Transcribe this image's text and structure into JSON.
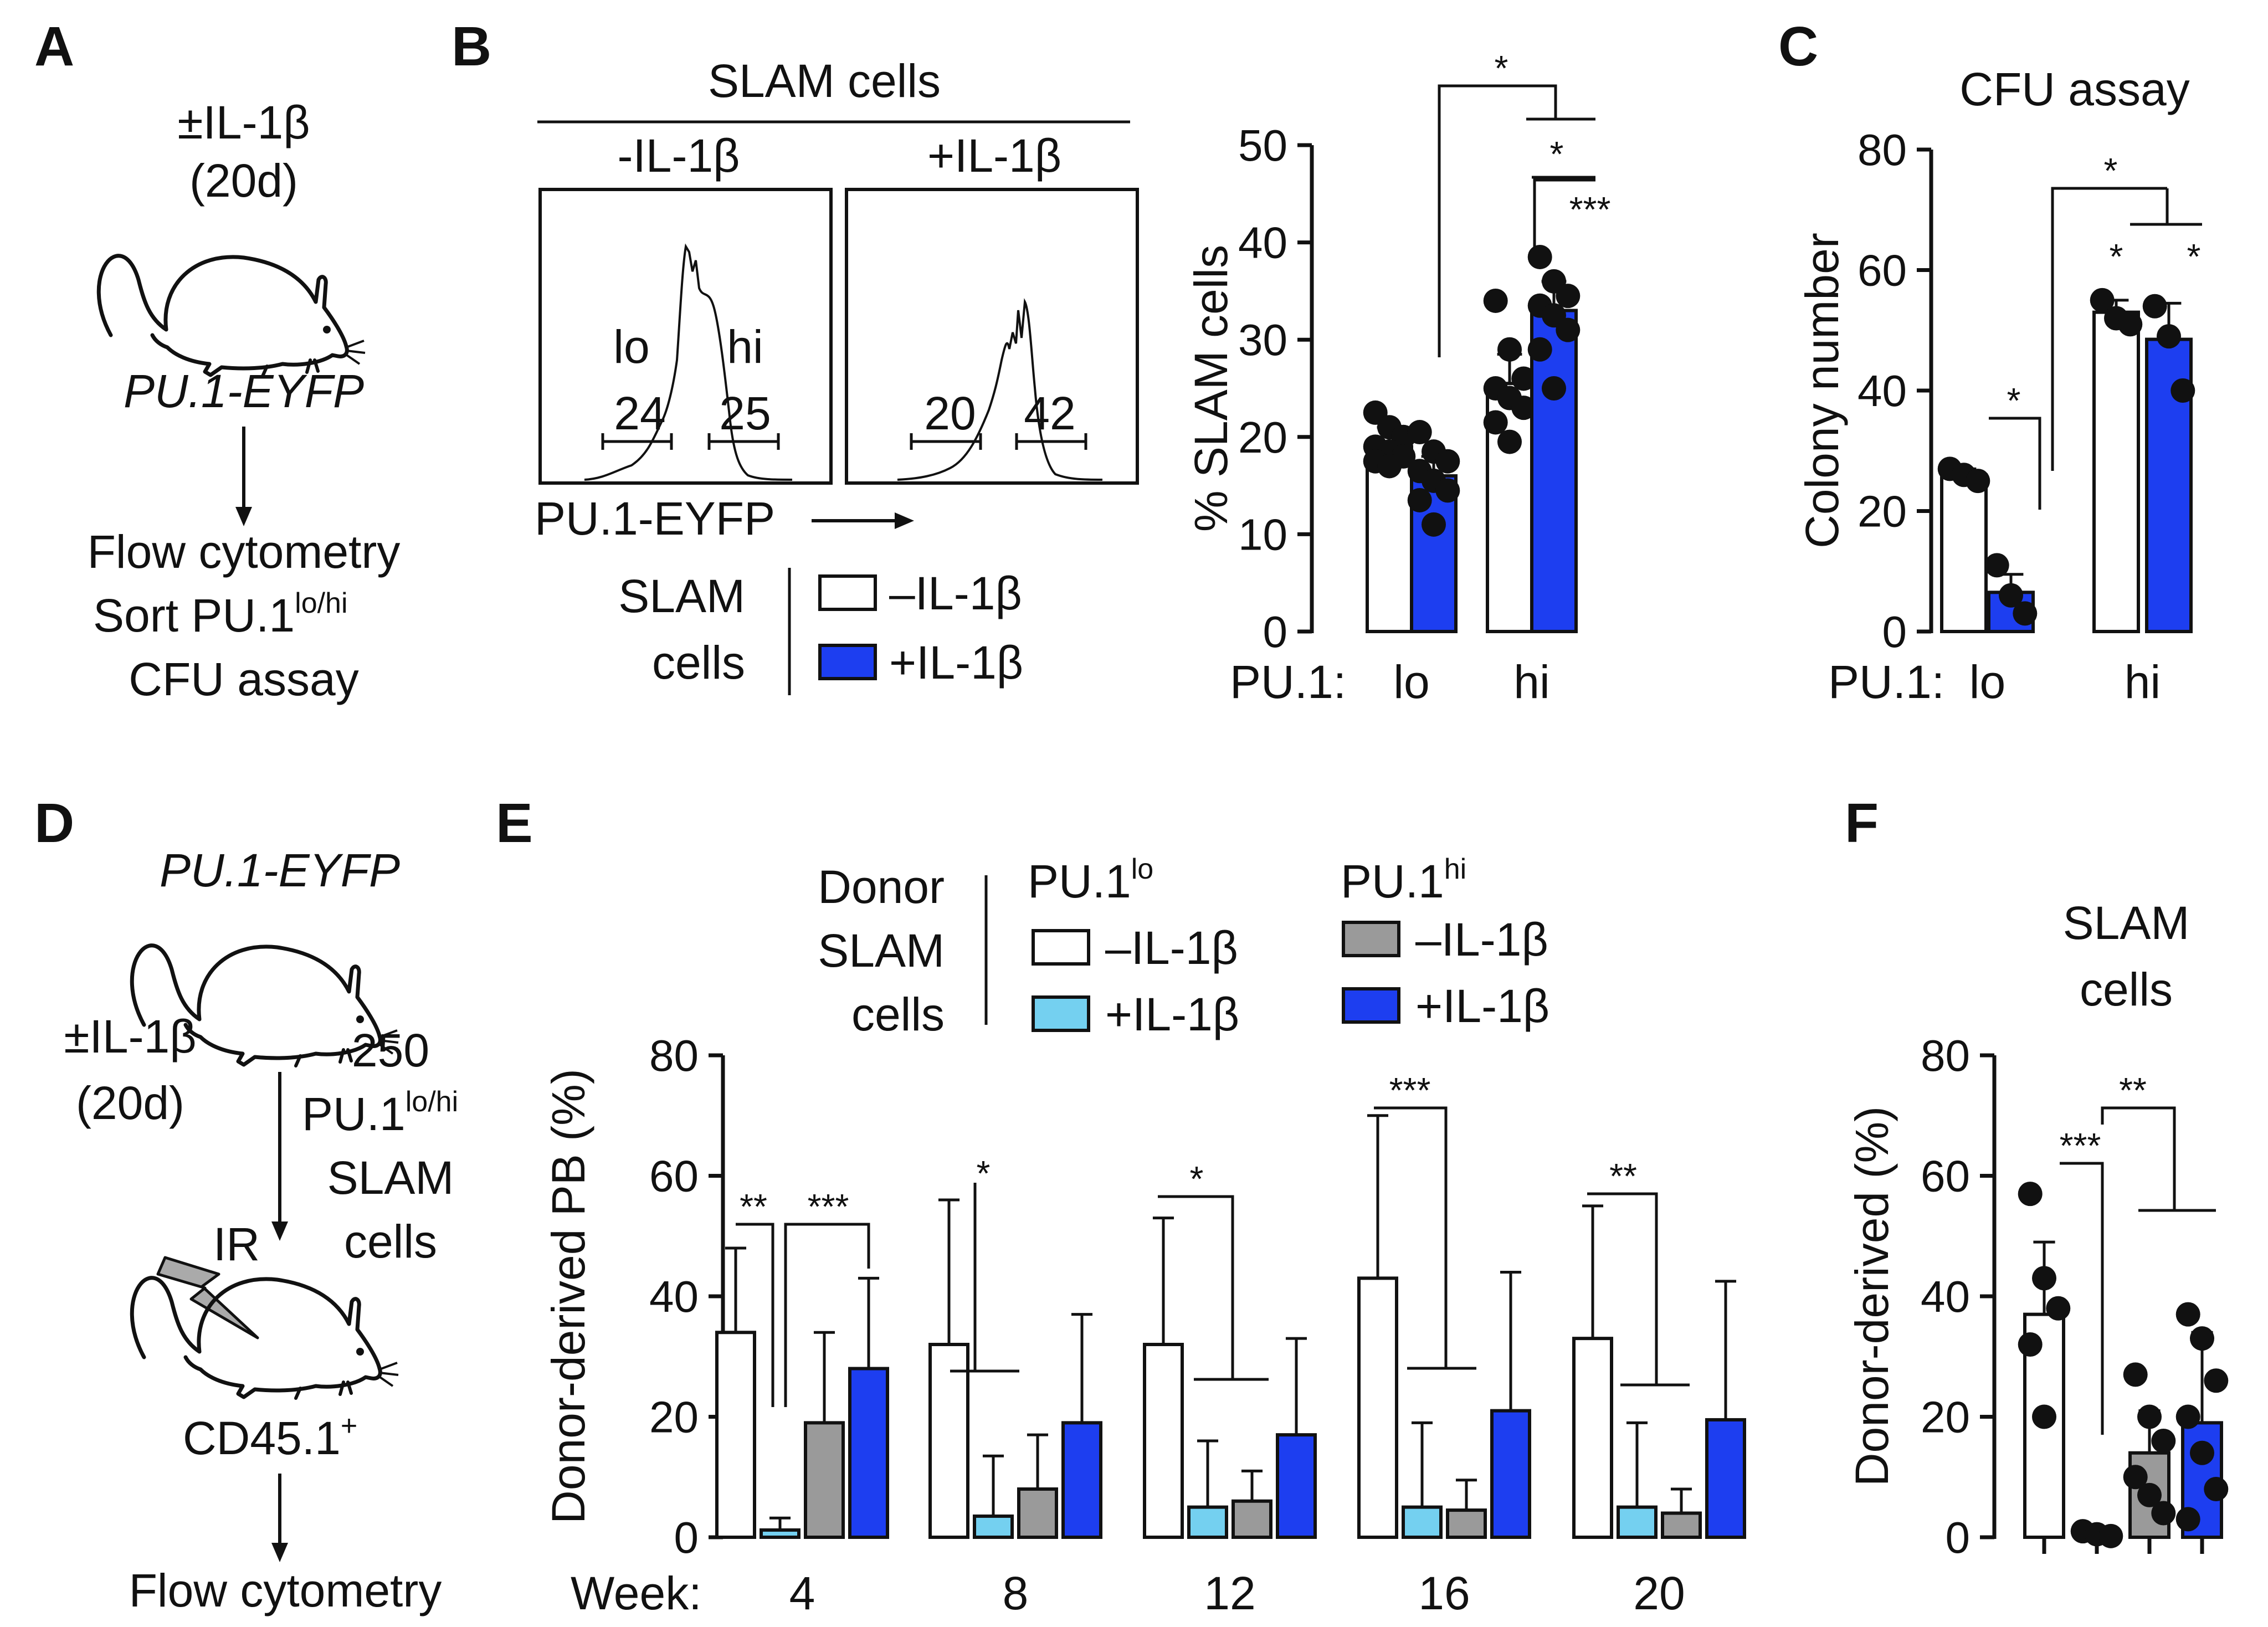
{
  "colors": {
    "white": "#ffffff",
    "light_blue": "#74d0f0",
    "gray": "#9a9a9a",
    "blue": "#1d3ef0",
    "ink": "#111111"
  },
  "panel_labels": {
    "a": "A",
    "b": "B",
    "c": "C",
    "d": "D",
    "e": "E",
    "f": "F"
  },
  "panel_a": {
    "treatment": "±IL-1β",
    "duration": "(20d)",
    "strain": "PU.1-EYFP",
    "step1": "Flow cytometry",
    "step2_main": "Sort PU.1",
    "step2_sup": "lo/hi",
    "step3": "CFU assay"
  },
  "panel_b_flow": {
    "title": "SLAM cells",
    "left_label": "-IL-1β",
    "right_label": "+IL-1β",
    "lo_label": "lo",
    "hi_label": "hi",
    "left_lo_pct": "24",
    "left_hi_pct": "25",
    "right_lo_pct": "20",
    "right_hi_pct": "42",
    "x_axis": "PU.1-EYFP",
    "legend_title_1": "SLAM",
    "legend_title_2": "cells",
    "legend_minus": "–IL-1β",
    "legend_plus": "+IL-1β"
  },
  "panel_d": {
    "strain": "PU.1-EYFP",
    "treatment": "±IL-1β",
    "duration": "(20d)",
    "count": "250",
    "cells_main": "PU.1",
    "cells_sup": "lo/hi",
    "cells_line3": "SLAM",
    "cells_line4": "cells",
    "ir": "IR",
    "recipient_main": "CD45.1",
    "recipient_sup": "+",
    "readout": "Flow cytometry"
  },
  "panel_e_legend": {
    "title_1": "Donor",
    "title_2": "SLAM",
    "title_3": "cells",
    "lo_header_main": "PU.1",
    "lo_header_sup": "lo",
    "hi_header_main": "PU.1",
    "hi_header_sup": "hi",
    "minus": "–IL-1β",
    "plus": "+IL-1β"
  },
  "chart_data": [
    {
      "id": "B",
      "type": "bar",
      "title": "",
      "ylabel": "% SLAM cells",
      "xlabel_prefix": "PU.1:",
      "ylim": [
        0,
        50
      ],
      "yticks": [
        0,
        10,
        20,
        30,
        40,
        50
      ],
      "categories": [
        "lo",
        "hi"
      ],
      "series": [
        {
          "name": "–IL-1β",
          "color": "#ffffff",
          "values": [
            19,
            25.5
          ],
          "errors": [
            2,
            3
          ],
          "points": [
            [
              22.5,
              21,
              20,
              19,
              18.5,
              18,
              17.5,
              17
            ],
            [
              34,
              29,
              26,
              25,
              24,
              23,
              21.5,
              19.5
            ]
          ]
        },
        {
          "name": "+IL-1β",
          "color": "#1d3ef0",
          "values": [
            16,
            33
          ],
          "errors": [
            2,
            3
          ],
          "points": [
            [
              20.5,
              18.5,
              17.5,
              16.5,
              15.5,
              14.5,
              13.5,
              11
            ],
            [
              38.5,
              36,
              34.5,
              33.5,
              32.5,
              31,
              29,
              25
            ]
          ]
        }
      ],
      "significance": [
        "*",
        "*",
        "***"
      ]
    },
    {
      "id": "C",
      "type": "bar",
      "title": "CFU assay",
      "ylabel": "Colony number",
      "xlabel_prefix": "PU.1:",
      "ylim": [
        0,
        80
      ],
      "yticks": [
        0,
        20,
        40,
        60,
        80
      ],
      "categories": [
        "lo",
        "hi"
      ],
      "series": [
        {
          "name": "–IL-1β",
          "color": "#ffffff",
          "values": [
            26,
            53
          ],
          "errors": [
            1,
            2
          ],
          "points": [
            [
              27,
              26,
              25
            ],
            [
              55,
              52,
              51
            ]
          ]
        },
        {
          "name": "+IL-1β",
          "color": "#1d3ef0",
          "values": [
            6.5,
            48.5
          ],
          "errors": [
            3,
            6
          ],
          "points": [
            [
              11,
              6,
              3
            ],
            [
              54,
              49,
              40
            ]
          ]
        }
      ],
      "significance": [
        "*",
        "*",
        "*",
        "*"
      ]
    },
    {
      "id": "E",
      "type": "bar",
      "title": "",
      "ylabel": "Donor-derived PB (%)",
      "xlabel_prefix": "Week:",
      "ylim": [
        0,
        80
      ],
      "yticks": [
        0,
        20,
        40,
        60,
        80
      ],
      "categories": [
        "4",
        "8",
        "12",
        "16",
        "20"
      ],
      "series": [
        {
          "name": "PU.1lo –IL-1β",
          "color": "#ffffff",
          "values": [
            34,
            32,
            32,
            43,
            33
          ],
          "errors": [
            14,
            24,
            21,
            27,
            22
          ]
        },
        {
          "name": "PU.1lo +IL-1β",
          "color": "#74d0f0",
          "values": [
            1.2,
            3.5,
            5,
            5,
            5
          ],
          "errors": [
            2,
            10,
            11,
            14,
            14
          ]
        },
        {
          "name": "PU.1hi –IL-1β",
          "color": "#9a9a9a",
          "values": [
            19,
            8,
            6,
            4.5,
            4
          ],
          "errors": [
            15,
            9,
            5,
            5,
            4
          ]
        },
        {
          "name": "PU.1hi +IL-1β",
          "color": "#1d3ef0",
          "values": [
            28,
            19,
            17,
            21,
            19.5
          ],
          "errors": [
            15,
            18,
            16,
            23,
            23
          ]
        }
      ],
      "significance": [
        "**",
        "***",
        "*",
        "*",
        "***",
        "**"
      ]
    },
    {
      "id": "F",
      "type": "bar",
      "title": "SLAM cells",
      "ylabel": "Donor-derived (%)",
      "ylim": [
        0,
        80
      ],
      "yticks": [
        0,
        20,
        40,
        60,
        80
      ],
      "categories": [
        "PU.1lo –IL-1β",
        "PU.1lo +IL-1β",
        "PU.1hi –IL-1β",
        "PU.1hi +IL-1β"
      ],
      "series": [
        {
          "name": "Donor-derived",
          "colors": [
            "#ffffff",
            "#74d0f0",
            "#9a9a9a",
            "#1d3ef0"
          ],
          "values": [
            37,
            0.5,
            14,
            19
          ],
          "errors": [
            12,
            1,
            7,
            15
          ],
          "points": [
            [
              57,
              43,
              38,
              32,
              20
            ],
            [
              1,
              0.5,
              0.2
            ],
            [
              27,
              20,
              16,
              10,
              7,
              4
            ],
            [
              37,
              33,
              26,
              20,
              14,
              8,
              3
            ]
          ]
        }
      ],
      "significance": [
        "***",
        "**"
      ]
    }
  ]
}
